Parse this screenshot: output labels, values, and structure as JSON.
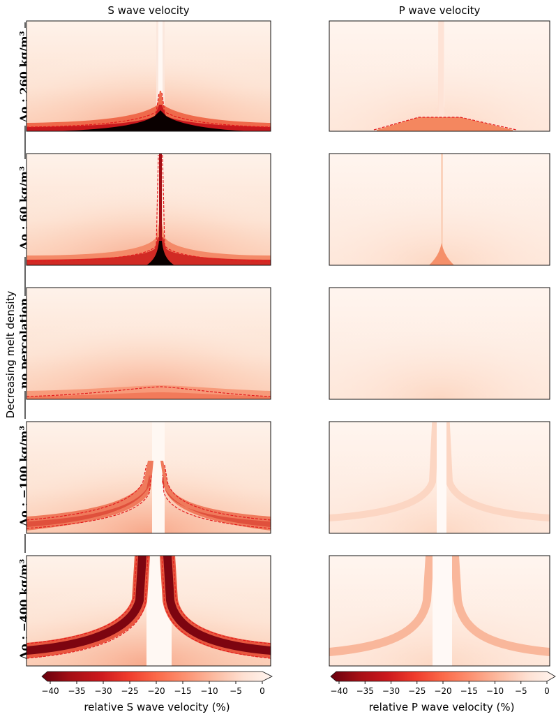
{
  "chart_data": {
    "type": "heatmap",
    "column_titles": [
      "S wave velocity",
      "P wave velocity"
    ],
    "row_labels": [
      "Δρ : 260 kg/m³",
      "Δρ : 60 kg/m³",
      "no percolation",
      "Δρ : −100 kg/m³",
      "Δρ : −400 kg/m³"
    ],
    "side_label": "Decreasing melt density",
    "colorbars": [
      {
        "label": "relative S wave velocity (%)",
        "ticks": [
          "−40",
          "−35",
          "−30",
          "−25",
          "−20",
          "−15",
          "−10",
          "−5",
          "0"
        ],
        "range": [
          -40,
          0
        ]
      },
      {
        "label": "relative P wave velocity (%)",
        "ticks": [
          "−40",
          "−35",
          "−30",
          "−25",
          "−20",
          "−15",
          "−10",
          "−5",
          "0"
        ],
        "range": [
          -40,
          0
        ]
      }
    ],
    "colormap": [
      "#67000d",
      "#a50f15",
      "#cb181d",
      "#ef3b2c",
      "#fb6a4a",
      "#fc9272",
      "#fcbba1",
      "#fee0d2",
      "#fff5f0"
    ],
    "contour_color": "#e31a1c"
  }
}
